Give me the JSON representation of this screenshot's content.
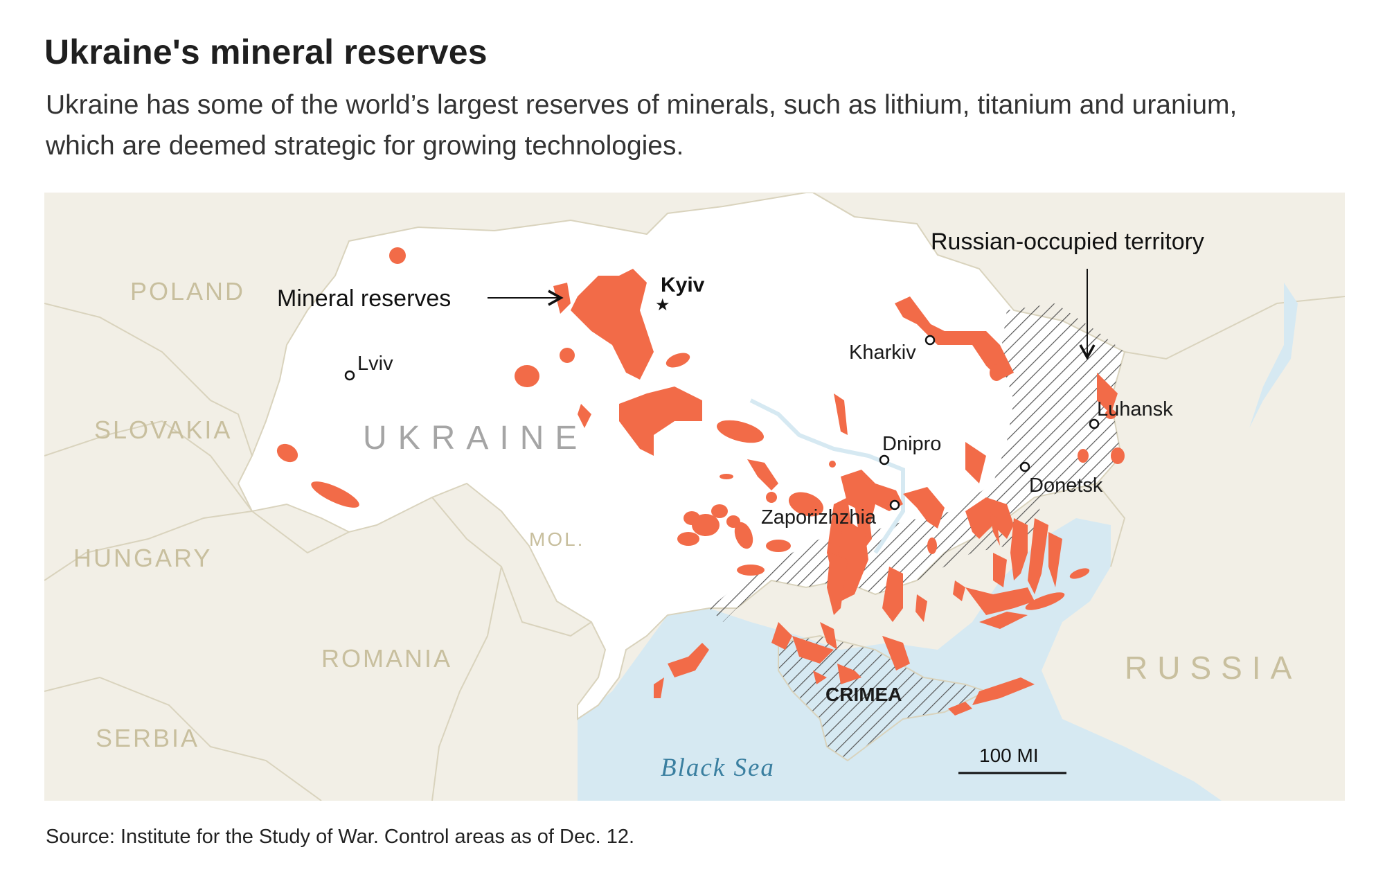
{
  "header": {
    "title": "Ukraine's mineral reserves",
    "subtitle": "Ukraine has some of the world’s largest reserves of minerals, such as lithium, titanium and uranium, which are deemed strategic for growing technologies."
  },
  "map": {
    "countries": {
      "poland": "POLAND",
      "slovakia": "SLOVAKIA",
      "hungary": "HUNGARY",
      "romania": "ROMANIA",
      "serbia": "SERBIA",
      "moldova": "MOL.",
      "ukraine": "UKRAINE",
      "russia": "RUSSIA"
    },
    "cities": {
      "kyiv": "Kyiv",
      "lviv": "Lviv",
      "kharkiv": "Kharkiv",
      "dnipro": "Dnipro",
      "zaporizhzhia": "Zaporizhzhia",
      "luhansk": "Luhansk",
      "donetsk": "Donetsk"
    },
    "region_label": "CRIMEA",
    "sea_label": "Black Sea",
    "annotations": {
      "mineral_reserves": "Mineral reserves",
      "occupied": "Russian-occupied territory"
    },
    "scale_label": "100 MI",
    "colors": {
      "land_other": "#f2efe6",
      "ukraine": "#ffffff",
      "sea": "#d6e9f2",
      "mineral": "#f26b48",
      "border": "#d9d3bd",
      "country_label": "#c8bf9e",
      "sea_label": "#3a7fa0",
      "hatch": "#555555"
    }
  },
  "footer": {
    "source": "Source: Institute for the Study of War. Control areas as of Dec. 12."
  }
}
